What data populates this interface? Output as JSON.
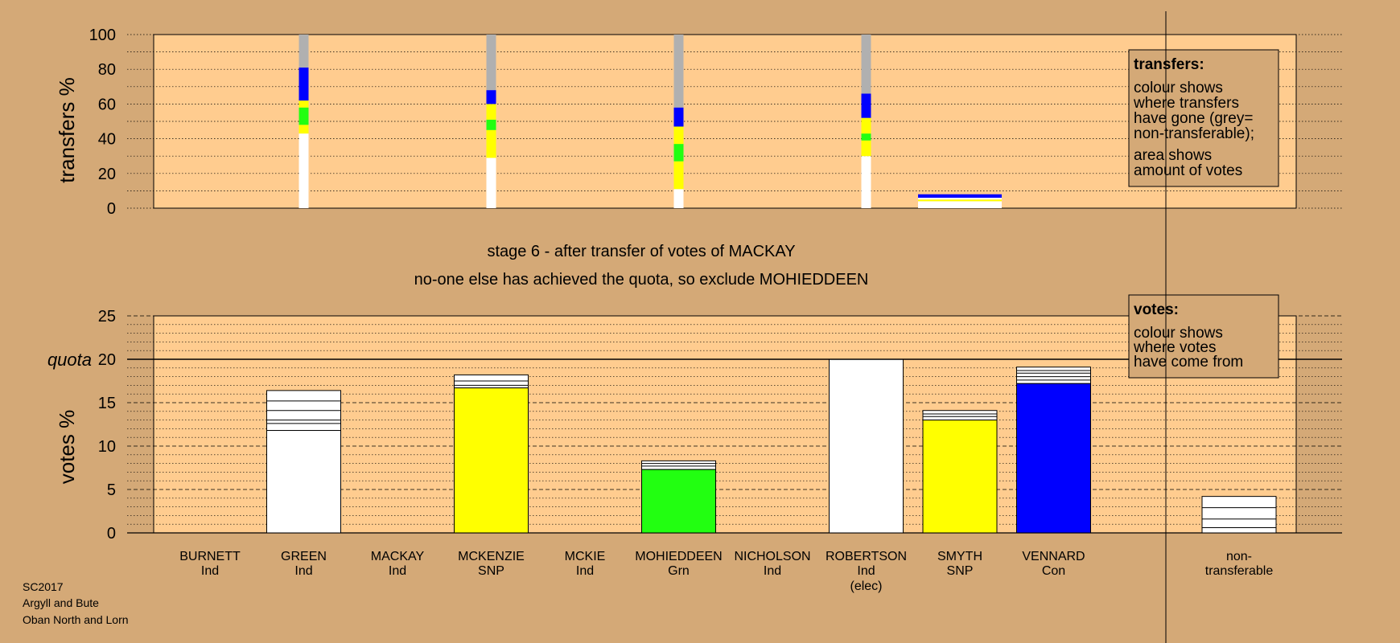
{
  "colors": {
    "background": "#d4a977",
    "plot_bg": "#ffcc8f",
    "white": "#ffffff",
    "yellow": "#ffff00",
    "green": "#22ff11",
    "blue": "#0000ff",
    "grey": "#b0b0b0"
  },
  "footer": {
    "line1": "SC2017",
    "line2": "Argyll and Bute",
    "line3": "Oban North and Lorn"
  },
  "stage": {
    "title": "stage 6 - after transfer of votes of MACKAY",
    "subtitle": "no-one else has achieved the quota, so exclude MOHIEDDEEN"
  },
  "legend_transfers": {
    "heading": "transfers:",
    "lines1": [
      "colour shows",
      "where transfers",
      "have gone (grey=",
      "non-transferable);"
    ],
    "lines2": [
      "area shows",
      "amount of votes"
    ]
  },
  "legend_votes": {
    "heading": "votes:",
    "lines": [
      "colour shows",
      "where votes",
      "have come from"
    ]
  },
  "chart_data": [
    {
      "type": "bar",
      "name": "transfers",
      "ylabel": "transfers %",
      "ylim": [
        0,
        100
      ],
      "yticks": [
        0,
        20,
        40,
        60,
        80,
        100
      ],
      "columns": [
        {
          "position": 1,
          "segments": [
            {
              "color": "white",
              "value": 43
            },
            {
              "color": "yellow",
              "value": 5
            },
            {
              "color": "green",
              "value": 10
            },
            {
              "color": "yellow",
              "value": 4
            },
            {
              "color": "blue",
              "value": 19
            },
            {
              "color": "grey",
              "value": 19
            }
          ]
        },
        {
          "position": 3,
          "segments": [
            {
              "color": "white",
              "value": 29
            },
            {
              "color": "yellow",
              "value": 16
            },
            {
              "color": "green",
              "value": 6
            },
            {
              "color": "yellow",
              "value": 9
            },
            {
              "color": "blue",
              "value": 8
            },
            {
              "color": "grey",
              "value": 32
            }
          ]
        },
        {
          "position": 5,
          "segments": [
            {
              "color": "white",
              "value": 11
            },
            {
              "color": "yellow",
              "value": 16
            },
            {
              "color": "green",
              "value": 10
            },
            {
              "color": "yellow",
              "value": 10
            },
            {
              "color": "blue",
              "value": 11
            },
            {
              "color": "grey",
              "value": 42
            }
          ]
        },
        {
          "position": 7,
          "segments": [
            {
              "color": "white",
              "value": 30
            },
            {
              "color": "yellow",
              "value": 9
            },
            {
              "color": "green",
              "value": 4
            },
            {
              "color": "yellow",
              "value": 9
            },
            {
              "color": "blue",
              "value": 14
            },
            {
              "color": "grey",
              "value": 34
            }
          ]
        }
      ],
      "wide_bar": {
        "position": 8,
        "segments": [
          {
            "color": "white",
            "value": 4
          },
          {
            "color": "yellow",
            "value": 1
          },
          {
            "color": "white",
            "value": 1
          },
          {
            "color": "blue",
            "value": 2
          }
        ]
      }
    },
    {
      "type": "bar",
      "name": "votes",
      "ylabel": "votes %",
      "ylim": [
        0,
        25
      ],
      "yticks": [
        0,
        5,
        10,
        15,
        20,
        25
      ],
      "quota": 20,
      "quota_label": "quota",
      "categories": [
        {
          "name": "BURNETT",
          "party": "Ind",
          "extra": ""
        },
        {
          "name": "GREEN",
          "party": "Ind",
          "extra": ""
        },
        {
          "name": "MACKAY",
          "party": "Ind",
          "extra": ""
        },
        {
          "name": "MCKENZIE",
          "party": "SNP",
          "extra": ""
        },
        {
          "name": "MCKIE",
          "party": "Ind",
          "extra": ""
        },
        {
          "name": "MOHIEDDEEN",
          "party": "Grn",
          "extra": ""
        },
        {
          "name": "NICHOLSON",
          "party": "Ind",
          "extra": ""
        },
        {
          "name": "ROBERTSON",
          "party": "Ind",
          "extra": "(elec)"
        },
        {
          "name": "SMYTH",
          "party": "SNP",
          "extra": ""
        },
        {
          "name": "VENNARD",
          "party": "Con",
          "extra": ""
        }
      ],
      "values": [
        0,
        16.4,
        0,
        18.2,
        0,
        8.3,
        0,
        20.0,
        14.1,
        19.1
      ],
      "first_pref": [
        0,
        11.8,
        0,
        16.7,
        0,
        7.3,
        0,
        20.0,
        13.0,
        17.2
      ],
      "first_pref_color": [
        null,
        "white",
        null,
        "yellow",
        null,
        "green",
        null,
        "white",
        "yellow",
        "blue"
      ],
      "transfer_lines": [
        [],
        [
          12.6,
          13.0,
          14.1,
          15.2
        ],
        [],
        [
          17.0,
          17.5
        ],
        [],
        [
          7.7,
          8.0
        ],
        [],
        [],
        [
          13.4,
          13.7
        ],
        [
          17.6,
          18.0,
          18.4,
          18.7
        ]
      ],
      "nontransferable": {
        "label_1": "non-",
        "label_2": "transferable",
        "value": 4.2,
        "lines": [
          0.6,
          1.6,
          2.9
        ]
      }
    }
  ]
}
